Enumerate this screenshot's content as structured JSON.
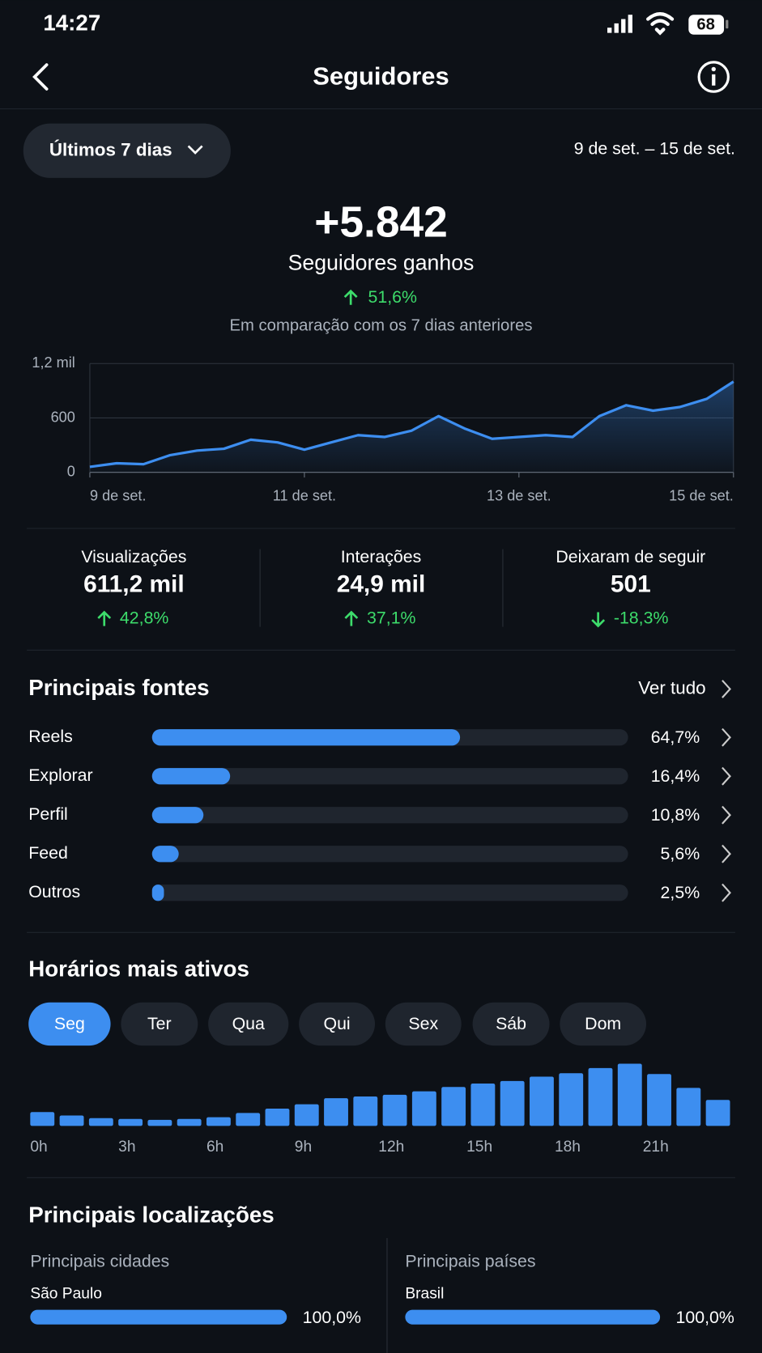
{
  "status_bar": {
    "time": "14:27",
    "battery": "68"
  },
  "header": {
    "title": "Seguidores"
  },
  "period": {
    "selector": "Últimos 7 dias",
    "range": "9 de set. – 15 de set."
  },
  "summary": {
    "value": "+5.842",
    "label": "Seguidores ganhos",
    "change": "51,6%",
    "comparison": "Em comparação com os 7 dias anteriores"
  },
  "chart_data": [
    {
      "type": "line",
      "categories": [
        "9 de set.",
        null,
        null,
        null,
        null,
        null,
        null,
        null,
        "11 de set.",
        null,
        null,
        null,
        null,
        null,
        null,
        null,
        "13 de set.",
        null,
        null,
        null,
        null,
        null,
        null,
        null,
        "15 de set."
      ],
      "series": [
        {
          "name": "Seguidores",
          "color": "#3d8ef0",
          "values": [
            60,
            100,
            90,
            190,
            240,
            260,
            360,
            330,
            250,
            330,
            410,
            390,
            460,
            620,
            480,
            370,
            390,
            410,
            390,
            620,
            740,
            680,
            720,
            810,
            1000
          ]
        }
      ],
      "ylim": [
        0,
        1200
      ],
      "yticks": [
        0,
        600,
        {
          "value": 1200,
          "label": "1,2 mil"
        }
      ],
      "grid": true
    },
    {
      "type": "bar",
      "categories": [
        "0h",
        null,
        null,
        "3h",
        null,
        null,
        "6h",
        null,
        null,
        "9h",
        null,
        null,
        "12h",
        null,
        null,
        "15h",
        null,
        null,
        "18h",
        null,
        null,
        "21h",
        null,
        null
      ],
      "values": [
        16,
        12,
        9,
        8,
        7,
        8,
        10,
        15,
        20,
        25,
        32,
        34,
        36,
        40,
        45,
        49,
        52,
        57,
        61,
        67,
        72,
        60,
        44,
        30
      ],
      "color": "#3d8ef0",
      "ylim": [
        0,
        80
      ]
    }
  ],
  "metrics": [
    {
      "label": "Visualizações",
      "value": "611,2 mil",
      "change": "42,8%",
      "direction": "up"
    },
    {
      "label": "Interações",
      "value": "24,9 mil",
      "change": "37,1%",
      "direction": "up"
    },
    {
      "label": "Deixaram de seguir",
      "value": "501",
      "change": "-18,3%",
      "direction": "down"
    }
  ],
  "sources": {
    "title": "Principais fontes",
    "link": "Ver tudo",
    "xlim": [
      0,
      100
    ],
    "color": "#3d8ef0",
    "items": [
      {
        "name": "Reels",
        "value": 64.7,
        "label": "64,7%"
      },
      {
        "name": "Explorar",
        "value": 16.4,
        "label": "16,4%"
      },
      {
        "name": "Perfil",
        "value": 10.8,
        "label": "10,8%"
      },
      {
        "name": "Feed",
        "value": 5.6,
        "label": "5,6%"
      },
      {
        "name": "Outros",
        "value": 2.5,
        "label": "2,5%"
      }
    ]
  },
  "active_hours": {
    "title": "Horários mais ativos",
    "days": [
      "Seg",
      "Ter",
      "Qua",
      "Qui",
      "Sex",
      "Sáb",
      "Dom"
    ],
    "selected": 0
  },
  "locations": {
    "title": "Principais localizações",
    "xlim": [
      0,
      100
    ],
    "groups": [
      {
        "title": "Principais cidades",
        "items": [
          {
            "name": "São Paulo",
            "value": 100,
            "label": "100,0%"
          }
        ]
      },
      {
        "title": "Principais países",
        "items": [
          {
            "name": "Brasil",
            "value": 100,
            "label": "100,0%"
          }
        ]
      }
    ]
  }
}
